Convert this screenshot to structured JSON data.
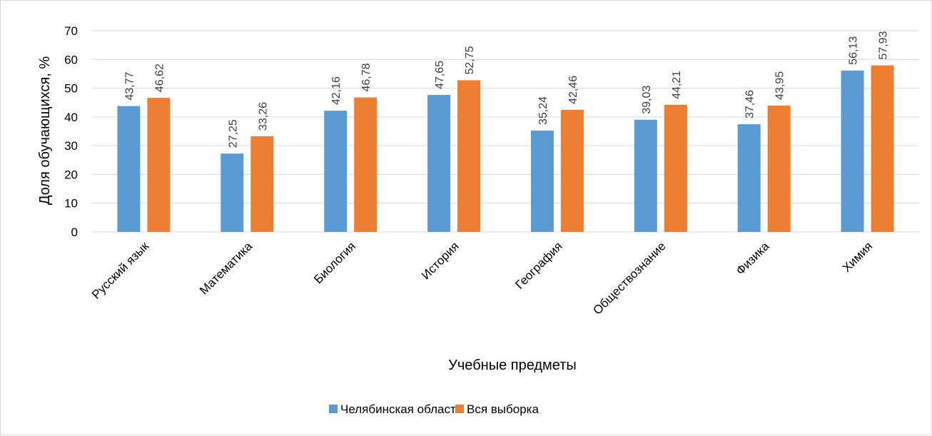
{
  "chart_data": {
    "type": "bar",
    "categories": [
      "Русский язык",
      "Математика",
      "Биология",
      "История",
      "География",
      "Обществознание",
      "Физика",
      "Химия"
    ],
    "series": [
      {
        "name": "Челябинская область",
        "color": "#5b9bd5",
        "values": [
          43.77,
          27.25,
          42.16,
          47.65,
          35.24,
          39.03,
          37.46,
          56.13
        ],
        "labels": [
          "43,77",
          "27,25",
          "42,16",
          "47,65",
          "35,24",
          "39,03",
          "37,46",
          "56,13"
        ]
      },
      {
        "name": "Вся выборка",
        "color": "#ed7d31",
        "values": [
          46.62,
          33.26,
          46.78,
          52.75,
          42.46,
          44.21,
          43.95,
          57.93
        ],
        "labels": [
          "46,62",
          "33,26",
          "46,78",
          "52,75",
          "42,46",
          "44,21",
          "43,95",
          "57,93"
        ]
      }
    ],
    "title": "",
    "xlabel": "Учебные предметы",
    "ylabel": "Доля обучающихся, %",
    "ylim": [
      0,
      70
    ],
    "yticks": [
      0,
      10,
      20,
      30,
      40,
      50,
      60,
      70
    ],
    "grid": true,
    "legend_position": "bottom",
    "gridline_color": "#d9d9d9"
  }
}
